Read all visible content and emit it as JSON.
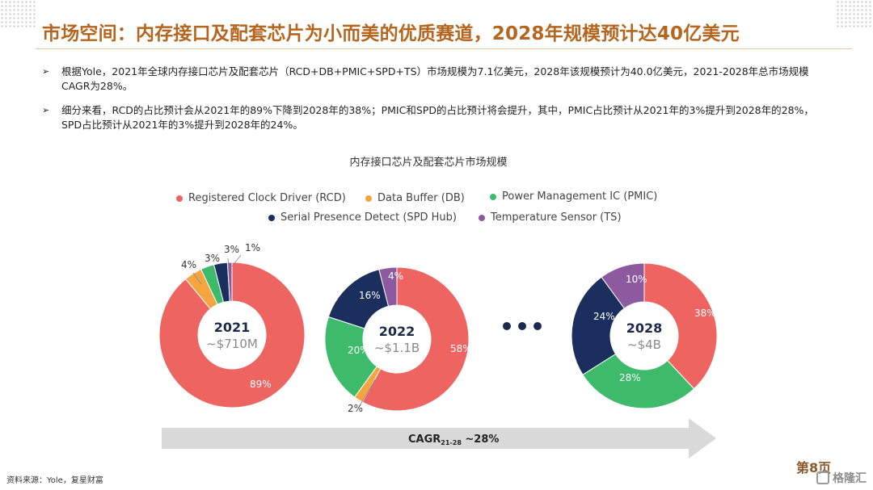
{
  "header": {
    "title": "市场空间：内存接口及配套芯片为小而美的优质赛道，2028年规模预计达40亿美元"
  },
  "bullets": [
    {
      "arrow": "➢",
      "text": "根据Yole，2021年全球内存接口芯片及配套芯片（RCD+DB+PMIC+SPD+TS）市场规模为7.1亿美元，2028年该规模预计为40.0亿美元，2021-2028年总市场规模CAGR为28%。"
    },
    {
      "arrow": "➢",
      "text": "细分来看，RCD的占比预计会从2021年的89%下降到2028年的38%；PMIC和SPD的占比预计将会提升，其中，PMIC占比预计从2021年的3%提升到2028年的28%，SPD占比预计从2021年的3%提升到2028年的24%。"
    }
  ],
  "chart_data": {
    "type": "pie",
    "title": "内存接口芯片及配套芯片市场规模",
    "legend_position": "top",
    "series_legend": [
      {
        "name": "Registered Clock Driver (RCD)",
        "color": "#ee6460"
      },
      {
        "name": "Data Buffer (DB)",
        "color": "#f4a540"
      },
      {
        "name": "Power Management IC (PMIC)",
        "color": "#3dbb6a"
      },
      {
        "name": "Serial Presence Detect (SPD Hub)",
        "color": "#1b2f5e"
      },
      {
        "name": "Temperature Sensor (TS)",
        "color": "#8d5aa0"
      }
    ],
    "charts": [
      {
        "year": "2021",
        "size_label": "~$710M",
        "slices": [
          {
            "name": "RCD",
            "value": 89,
            "label": "89%"
          },
          {
            "name": "DB",
            "value": 4,
            "label": "4%"
          },
          {
            "name": "PMIC",
            "value": 3,
            "label": "3%"
          },
          {
            "name": "SPD",
            "value": 3,
            "label": "3%"
          },
          {
            "name": "TS",
            "value": 1,
            "label": "1%"
          }
        ]
      },
      {
        "year": "2022",
        "size_label": "~$1.1B",
        "slices": [
          {
            "name": "RCD",
            "value": 58,
            "label": "58%"
          },
          {
            "name": "DB",
            "value": 2,
            "label": "2%"
          },
          {
            "name": "PMIC",
            "value": 20,
            "label": "20%"
          },
          {
            "name": "SPD",
            "value": 16,
            "label": "16%"
          },
          {
            "name": "TS",
            "value": 4,
            "label": "4%"
          }
        ]
      },
      {
        "year": "2028",
        "size_label": "~$4B",
        "slices": [
          {
            "name": "RCD",
            "value": 38,
            "label": "38%"
          },
          {
            "name": "DB",
            "value": 0,
            "label": ""
          },
          {
            "name": "PMIC",
            "value": 28,
            "label": "28%"
          },
          {
            "name": "SPD",
            "value": 24,
            "label": "24%"
          },
          {
            "name": "TS",
            "value": 10,
            "label": "10%"
          }
        ]
      }
    ],
    "cagr": {
      "prefix": "CAGR",
      "subscript": "21-28",
      "value": " ~28%"
    }
  },
  "footer": {
    "source": "资料来源：Yole，复星财富",
    "page": "第8页",
    "watermark": "格隆汇"
  },
  "colors": {
    "title": "#b5651d",
    "arrow_band": "#d9d9d9"
  }
}
